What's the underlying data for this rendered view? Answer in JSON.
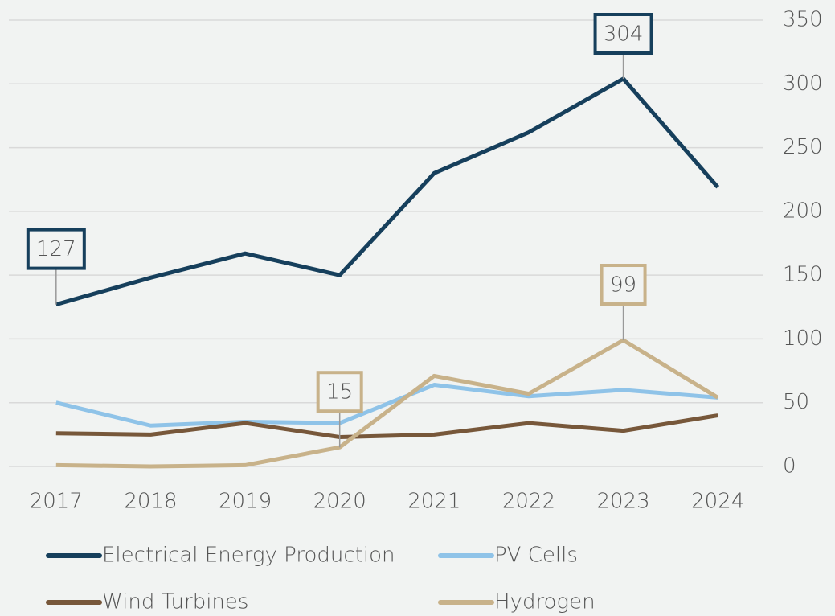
{
  "chart_data": {
    "type": "line",
    "categories": [
      "2017",
      "2018",
      "2019",
      "2020",
      "2021",
      "2022",
      "2023",
      "2024"
    ],
    "series": [
      {
        "name": "Electrical Energy Production",
        "color": "#163f5c",
        "values": [
          127,
          148,
          167,
          150,
          230,
          262,
          304,
          219
        ],
        "value_labels": [
          "127",
          null,
          null,
          null,
          null,
          null,
          "304",
          null
        ]
      },
      {
        "name": "PV Cells",
        "color": "#8fc3e8",
        "values": [
          50,
          32,
          35,
          34,
          64,
          55,
          60,
          54
        ]
      },
      {
        "name": "Wind Turbines",
        "color": "#77573a",
        "values": [
          26,
          25,
          34,
          23,
          25,
          34,
          28,
          40
        ]
      },
      {
        "name": "Hydrogen",
        "color": "#c8b28a",
        "values": [
          1,
          0,
          1,
          15,
          71,
          57,
          99,
          54
        ],
        "value_labels": [
          null,
          null,
          null,
          "15",
          null,
          null,
          "99",
          null
        ]
      }
    ],
    "ylim": [
      0,
      350
    ],
    "yticks": [
      0,
      50,
      100,
      150,
      200,
      250,
      300,
      350
    ],
    "grid": true,
    "legend": "bottom"
  }
}
